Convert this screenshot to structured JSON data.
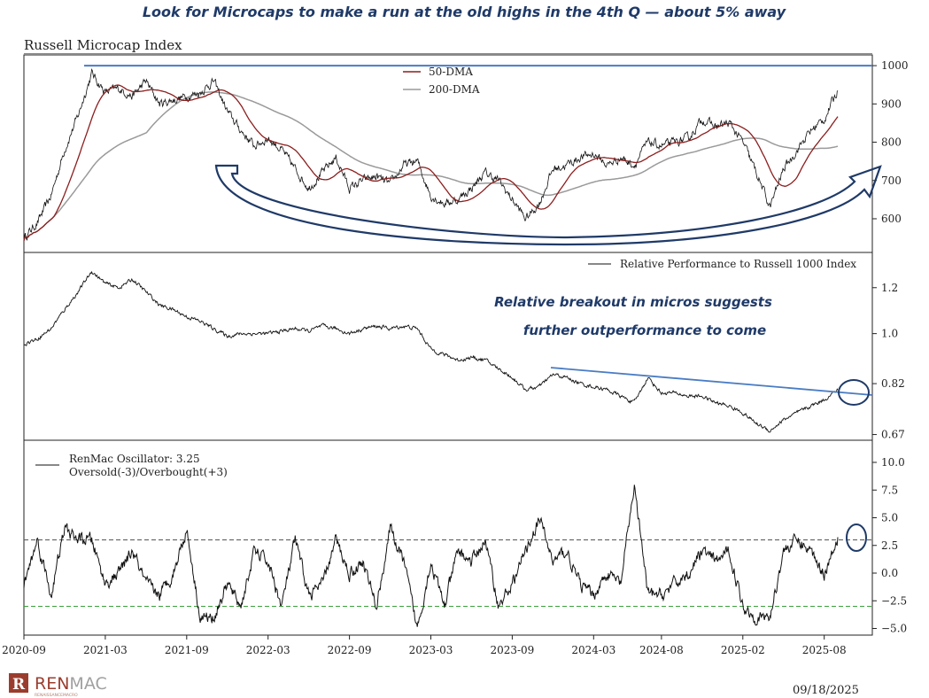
{
  "headline": "Look for Microcaps to make a run at the old highs in the 4th Q — about 5% away",
  "chart_title": "Russell Microcap Index",
  "date_stamp": "09/18/2025",
  "logo": {
    "name": "RENMAC",
    "tagline": "RENAISSANCEMACRO"
  },
  "colors": {
    "annotation": "#1f3a68",
    "resistance_line": "#4a7cc4",
    "dma50": "#8b1e1e",
    "dma200": "#9a9a9a",
    "overbought": "#d62020",
    "oversold": "#3aa03a"
  },
  "chart_data": [
    {
      "type": "line",
      "title": "Russell Microcap Index",
      "scale": "linear",
      "ylim": [
        512,
        1028
      ],
      "yticks": [
        600,
        700,
        800,
        900,
        1000
      ],
      "x_months": [
        "2020-09",
        "2020-10",
        "2020-11",
        "2020-12",
        "2021-01",
        "2021-02",
        "2021-03",
        "2021-04",
        "2021-05",
        "2021-06",
        "2021-07",
        "2021-08",
        "2021-09",
        "2021-10",
        "2021-11",
        "2021-12",
        "2022-01",
        "2022-02",
        "2022-03",
        "2022-04",
        "2022-05",
        "2022-06",
        "2022-07",
        "2022-08",
        "2022-09",
        "2022-10",
        "2022-11",
        "2022-12",
        "2023-01",
        "2023-02",
        "2023-03",
        "2023-04",
        "2023-05",
        "2023-06",
        "2023-07",
        "2023-08",
        "2023-09",
        "2023-10",
        "2023-11",
        "2023-12",
        "2024-01",
        "2024-02",
        "2024-03",
        "2024-04",
        "2024-05",
        "2024-06",
        "2024-07",
        "2024-08",
        "2024-09",
        "2024-10",
        "2024-11",
        "2024-12",
        "2025-01",
        "2025-02",
        "2025-03",
        "2025-04",
        "2025-05",
        "2025-06",
        "2025-07",
        "2025-08",
        "2025-09"
      ],
      "series": [
        {
          "name": "Russell Microcap Index",
          "values": [
            550,
            590,
            660,
            780,
            870,
            980,
            930,
            940,
            920,
            960,
            900,
            910,
            920,
            930,
            960,
            880,
            830,
            790,
            810,
            780,
            730,
            680,
            720,
            760,
            680,
            700,
            710,
            690,
            740,
            750,
            660,
            640,
            650,
            680,
            720,
            700,
            650,
            600,
            640,
            730,
            740,
            760,
            770,
            740,
            760,
            740,
            800,
            790,
            800,
            810,
            860,
            840,
            850,
            800,
            720,
            630,
            730,
            780,
            830,
            860,
            935
          ]
        }
      ],
      "legend": [
        "50-DMA",
        "200-DMA"
      ],
      "legend_position": "top-center",
      "resistance_level": 1000
    },
    {
      "type": "line",
      "scale": "log",
      "ylim": [
        0.655,
        1.38
      ],
      "yticks": [
        0.67,
        0.82,
        1.0,
        1.2
      ],
      "ytick_labels": [
        "0.67",
        "0.82",
        "1.0",
        "1.2"
      ],
      "series": [
        {
          "name": "Relative Performance to Russell 1000 Index",
          "values": [
            0.96,
            0.98,
            1.02,
            1.1,
            1.18,
            1.28,
            1.22,
            1.2,
            1.24,
            1.18,
            1.12,
            1.1,
            1.07,
            1.05,
            1.02,
            0.99,
            1.0,
            1.0,
            1.0,
            1.01,
            1.02,
            1.01,
            1.03,
            1.02,
            1.0,
            1.02,
            1.03,
            1.02,
            1.03,
            1.02,
            0.94,
            0.92,
            0.9,
            0.91,
            0.9,
            0.87,
            0.84,
            0.8,
            0.81,
            0.85,
            0.84,
            0.82,
            0.81,
            0.8,
            0.78,
            0.76,
            0.84,
            0.79,
            0.79,
            0.78,
            0.78,
            0.76,
            0.75,
            0.73,
            0.7,
            0.68,
            0.71,
            0.73,
            0.75,
            0.77,
            0.8
          ]
        }
      ],
      "legend_position": "top-right",
      "annotation": [
        "Relative breakout in micros suggests",
        "further outperformance to come"
      ]
    },
    {
      "type": "line",
      "ylim": [
        -5.6,
        12
      ],
      "yticks": [
        -5.0,
        -2.5,
        0.0,
        2.5,
        5.0,
        7.5,
        10.0
      ],
      "ytick_labels": [
        "−5.0",
        "−2.5",
        "0.0",
        "2.5",
        "5.0",
        "7.5",
        "10.0"
      ],
      "series": [
        {
          "name": "RenMac Oscillator",
          "values": [
            -1,
            3,
            -2,
            4,
            3,
            3,
            -1,
            0,
            2,
            -1,
            -2,
            0,
            4,
            -4,
            -4,
            -1,
            -3,
            2,
            1,
            -3,
            3,
            -2,
            -1,
            3,
            0,
            1,
            -3,
            4,
            1,
            -5,
            1,
            -3,
            2,
            1,
            3,
            -3,
            -1,
            2,
            5,
            1,
            2,
            -1,
            -2,
            0,
            -1,
            8,
            -2,
            -2,
            -1,
            0,
            2,
            1,
            2,
            -3,
            -4,
            -4,
            2,
            3,
            2,
            0,
            3.25
          ]
        }
      ],
      "hlines": [
        3,
        -3
      ],
      "legend": [
        "RenMac Oscillator: 3.25",
        "Oversold(-3)/Overbought(+3)"
      ],
      "legend_position": "top-left"
    }
  ],
  "x_axis": {
    "tick_labels": [
      "2020-09",
      "2021-03",
      "2021-09",
      "2022-03",
      "2022-09",
      "2023-03",
      "2023-09",
      "2024-03",
      "2024-08",
      "2025-02",
      "2025-08"
    ]
  }
}
